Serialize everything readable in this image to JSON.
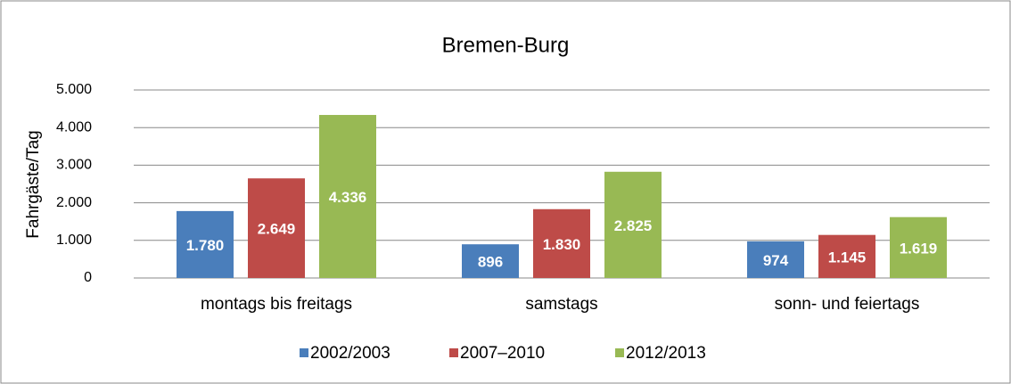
{
  "chart_data": {
    "type": "bar",
    "title": "Bremen-Burg",
    "y_label": "Fahrgäste/Tag",
    "categories": [
      "montags bis freitags",
      "samstags",
      "sonn- und feiertags"
    ],
    "series": [
      {
        "name": "2002/2003",
        "color": "#4a7ebb",
        "values": [
          1780,
          896,
          974
        ],
        "value_labels": [
          "1.780",
          "896",
          "974"
        ]
      },
      {
        "name": "2007–2010",
        "color": "#be4b48",
        "values": [
          2649,
          1830,
          1145
        ],
        "value_labels": [
          "2.649",
          "1.830",
          "1.145"
        ]
      },
      {
        "name": "2012/2013",
        "color": "#98b954",
        "values": [
          4336,
          2825,
          1619
        ],
        "value_labels": [
          "4.336",
          "2.825",
          "1.619"
        ]
      }
    ],
    "ylim": [
      0,
      5000
    ],
    "yticks": [
      0,
      {
        "value": 1000,
        "label": "1.000"
      },
      {
        "value": 2000,
        "label": "2.000"
      },
      {
        "value": 3000,
        "label": "3.000"
      },
      {
        "value": 4000,
        "label": "4.000"
      },
      {
        "value": 5000,
        "label": "5.000"
      }
    ],
    "grid": true,
    "legend": "bottom"
  }
}
